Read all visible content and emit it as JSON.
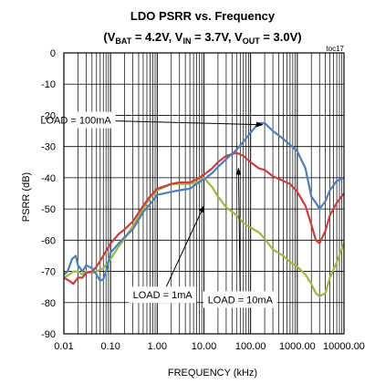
{
  "chart_data": {
    "type": "line",
    "title": "LDO PSRR vs. Frequency",
    "subtitle_parts": {
      "open": "(V",
      "bat_sub": "BAT",
      "bat_val": " = 4.2V, V",
      "in_sub": "IN",
      "in_val": " = 3.7V, V",
      "out_sub": "OUT",
      "out_val": " = 3.0V)"
    },
    "figure_ref": "toc17",
    "xlabel": "FREQUENCY (kHz)",
    "ylabel": "PSRR (dB)",
    "x_scale": "log",
    "xlim": [
      0.01,
      10000
    ],
    "ylim": [
      -90,
      0
    ],
    "x_ticks": [
      0.01,
      0.1,
      1,
      10,
      100,
      1000,
      10000
    ],
    "x_tick_labels": [
      "0.01",
      "0.10",
      "1.00",
      "10.00",
      "100.00",
      "1000.00",
      "10000.00"
    ],
    "y_ticks": [
      0,
      -10,
      -20,
      -30,
      -40,
      -50,
      -60,
      -70,
      -80,
      -90
    ],
    "y_tick_labels": [
      "0",
      "-10",
      "-20",
      "-30",
      "-40",
      "-50",
      "-60",
      "-70",
      "-80",
      "-90"
    ],
    "grid": true,
    "series": [
      {
        "name": "LOAD = 1mA",
        "color": "#9bbb3a",
        "x": [
          0.01,
          0.013,
          0.016,
          0.02,
          0.025,
          0.03,
          0.04,
          0.05,
          0.07,
          0.1,
          0.15,
          0.2,
          0.3,
          0.5,
          0.7,
          1,
          2,
          3,
          5,
          7,
          10,
          15,
          20,
          30,
          50,
          70,
          100,
          150,
          200,
          300,
          500,
          700,
          1000,
          1500,
          2000,
          2500,
          3000,
          4000,
          5000,
          7000,
          10000
        ],
        "y": [
          -72,
          -71,
          -70,
          -70,
          -71,
          -70,
          -70.5,
          -70,
          -69,
          -66,
          -62,
          -59.5,
          -55.5,
          -50,
          -46.5,
          -44,
          -42,
          -42,
          -42,
          -41.5,
          -40,
          -43,
          -46,
          -49.5,
          -52,
          -54.5,
          -56,
          -57.5,
          -59.5,
          -63,
          -65,
          -67,
          -68.5,
          -71,
          -74,
          -77,
          -78,
          -77,
          -72,
          -67,
          -61
        ]
      },
      {
        "name": "LOAD = 10mA",
        "color": "#d43a3a",
        "x": [
          0.01,
          0.013,
          0.016,
          0.02,
          0.025,
          0.03,
          0.04,
          0.05,
          0.07,
          0.1,
          0.15,
          0.2,
          0.3,
          0.5,
          0.7,
          1,
          2,
          3,
          5,
          7,
          10,
          15,
          20,
          30,
          50,
          70,
          100,
          150,
          200,
          300,
          500,
          700,
          1000,
          1500,
          2000,
          2500,
          3000,
          4000,
          5000,
          7000,
          10000
        ],
        "y": [
          -72,
          -73,
          -74,
          -72,
          -72,
          -70.5,
          -70,
          -68.5,
          -65,
          -61,
          -58,
          -56.5,
          -54,
          -49,
          -46,
          -43.5,
          -42,
          -41.5,
          -41.5,
          -40.5,
          -39,
          -37,
          -35,
          -33,
          -32,
          -33,
          -35,
          -37,
          -37.5,
          -39.5,
          -41,
          -42,
          -44.5,
          -49,
          -55,
          -60,
          -61,
          -57,
          -52,
          -48,
          -45
        ]
      },
      {
        "name": "LOAD = 100mA",
        "color": "#4a7fc1",
        "x": [
          0.01,
          0.012,
          0.015,
          0.018,
          0.02,
          0.025,
          0.03,
          0.04,
          0.05,
          0.06,
          0.07,
          0.08,
          0.1,
          0.15,
          0.2,
          0.3,
          0.5,
          0.7,
          1,
          2,
          3,
          5,
          7,
          10,
          15,
          20,
          30,
          50,
          70,
          100,
          150,
          200,
          300,
          500,
          700,
          1000,
          1500,
          2000,
          2500,
          3000,
          4000,
          5000,
          7000,
          10000
        ],
        "y": [
          -71,
          -70,
          -66,
          -65,
          -68,
          -70,
          -68,
          -69,
          -71,
          -73,
          -72.5,
          -70,
          -64,
          -61,
          -59,
          -56.5,
          -51,
          -48.5,
          -45.5,
          -44.5,
          -44,
          -43.5,
          -42,
          -40.5,
          -38.5,
          -36.5,
          -34,
          -31,
          -28.5,
          -25.5,
          -22.5,
          -22.5,
          -25,
          -27.5,
          -29.5,
          -31.5,
          -37,
          -46,
          -48,
          -50,
          -47.5,
          -44,
          -41,
          -40
        ]
      }
    ],
    "annotations": [
      {
        "label": "LOAD = 100mA",
        "ax": 0.018,
        "ay": -21.5,
        "tx": 180,
        "ty": -23
      },
      {
        "label": "LOAD = 1mA",
        "ax": 1.3,
        "ay": -77.5,
        "tx": 10,
        "ty": -49
      },
      {
        "label": "LOAD = 10mA",
        "ax": 60,
        "ay": -79,
        "tx": 55,
        "ty": -37
      }
    ]
  }
}
